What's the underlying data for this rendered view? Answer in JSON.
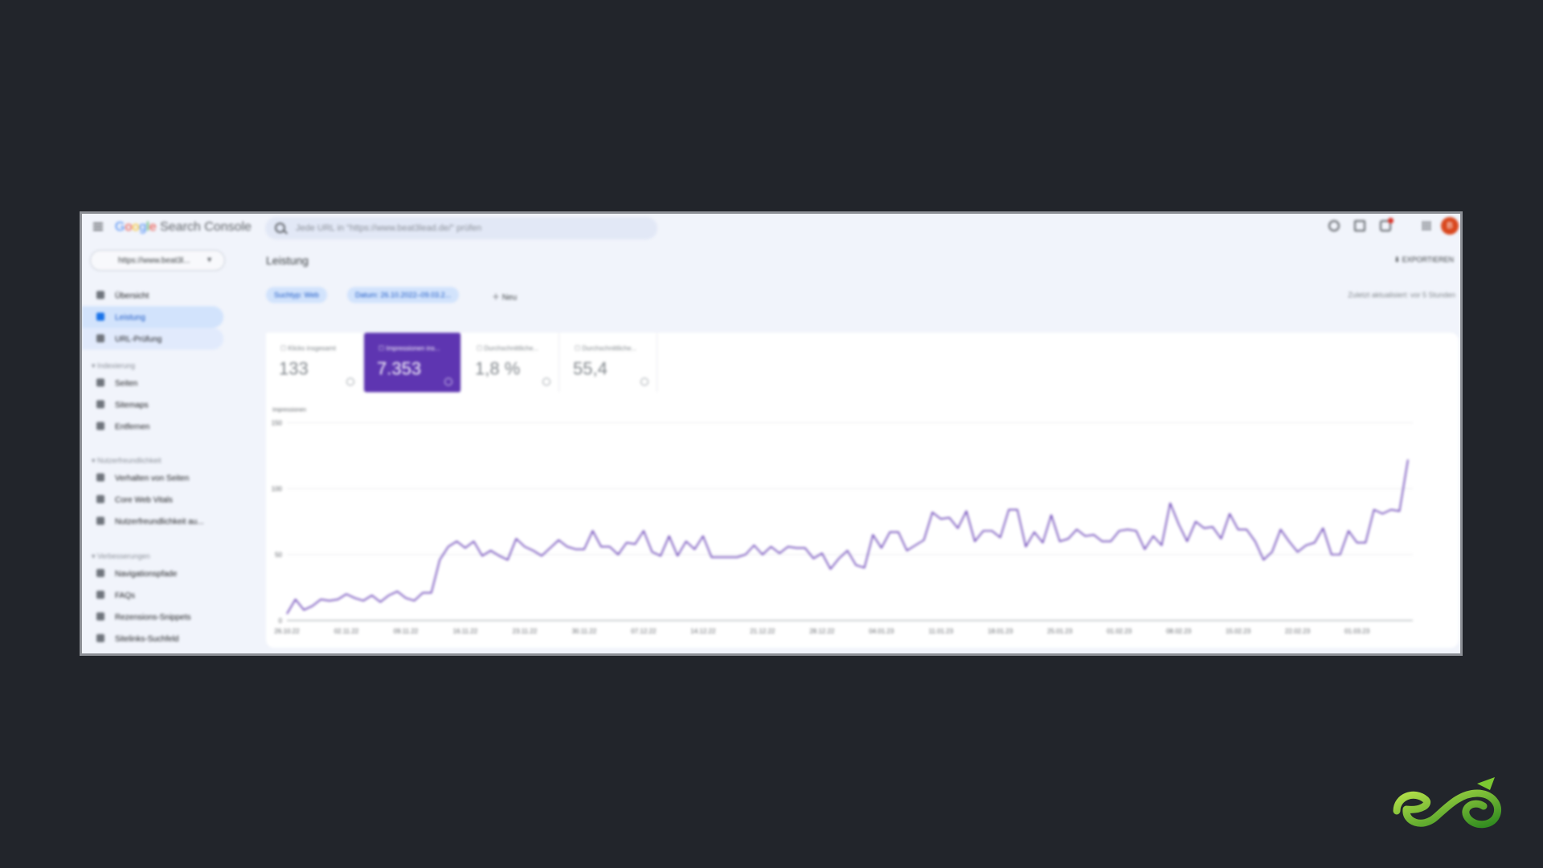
{
  "topbar": {
    "logo": {
      "g1": "G",
      "g2": "o",
      "g3": "o",
      "g4": "g",
      "g5": "l",
      "g6": "e",
      "product": "Search Console"
    },
    "search_placeholder": "Jede URL in \"https://www.beat3lead.de/\" prüfen",
    "avatar_initial": "B"
  },
  "sidebar": {
    "property": "https://www.beat3l...",
    "items": [
      {
        "label": "Übersicht",
        "icon": "home-icon"
      },
      {
        "label": "Leistung",
        "icon": "trending-icon",
        "active": true
      },
      {
        "label": "URL-Prüfung",
        "icon": "search-icon"
      }
    ],
    "sections": [
      {
        "title": "Indexierung",
        "items": [
          "Seiten",
          "Sitemaps",
          "Entfernen"
        ]
      },
      {
        "title": "Nutzerfreundlichkeit",
        "items": [
          "Verhalten von Seiten",
          "Core Web Vitals",
          "Nutzerfreundlichkeit au..."
        ]
      },
      {
        "title": "Verbesserungen",
        "items": [
          "Navigationspfade",
          "FAQs",
          "Rezensions-Snippets",
          "Sitelinks-Suchfeld"
        ]
      }
    ]
  },
  "main": {
    "title": "Leistung",
    "export": "EXPORTIEREN",
    "filters": [
      "Suchtyp: Web",
      "Datum: 26.10.2022–09.03.2..."
    ],
    "new_filter": "Neu",
    "updated": "Zuletzt aktualisiert: vor 5 Stunden",
    "metrics": [
      {
        "label": "Klicks insgesamt",
        "value": "133",
        "selected": false
      },
      {
        "label": "Impressionen ins...",
        "value": "7.353",
        "selected": true
      },
      {
        "label": "Durchschnittliche...",
        "value": "1,8 %",
        "selected": false
      },
      {
        "label": "Durchschnittliche...",
        "value": "55,4",
        "selected": false
      }
    ]
  },
  "colors": {
    "accent": "#5e35b1",
    "line": "#5e35b1",
    "active_nav": "#d2e3fc",
    "brand_green": "#5fb82d"
  },
  "chart_data": {
    "type": "line",
    "ylabel": "Impressionen",
    "ylim": [
      0,
      150
    ],
    "yticks": [
      0,
      50,
      100,
      150
    ],
    "x_labels": [
      "26.10.22",
      "02.11.22",
      "09.11.22",
      "16.11.22",
      "23.11.22",
      "30.11.22",
      "07.12.22",
      "14.12.22",
      "21.12.22",
      "28.12.22",
      "04.01.23",
      "11.01.23",
      "18.01.23",
      "25.01.23",
      "01.02.23",
      "08.02.23",
      "15.02.23",
      "22.02.23",
      "01.03.23"
    ],
    "series": [
      {
        "values": [
          5,
          16,
          8,
          11,
          16,
          15,
          16,
          20,
          17,
          15,
          19,
          14,
          19,
          22,
          17,
          15,
          21,
          21,
          46,
          56,
          60,
          55,
          60,
          49,
          53,
          49,
          46,
          62,
          56,
          53,
          49,
          55,
          61,
          56,
          54,
          54,
          68,
          56,
          56,
          50,
          59,
          58,
          68,
          52,
          49,
          64,
          49,
          60,
          54,
          64,
          48,
          48,
          48,
          48,
          50,
          57,
          50,
          56,
          51,
          56,
          55,
          55,
          47,
          51,
          39,
          47,
          53,
          42,
          40,
          65,
          55,
          67,
          67,
          53,
          57,
          61,
          82,
          77,
          78,
          70,
          83,
          60,
          68,
          68,
          63,
          84,
          84,
          56,
          67,
          59,
          80,
          60,
          62,
          69,
          64,
          65,
          60,
          60,
          68,
          69,
          68,
          54,
          64,
          57,
          89,
          73,
          60,
          75,
          70,
          71,
          62,
          81,
          69,
          69,
          60,
          46,
          52,
          69,
          60,
          52,
          57,
          59,
          70,
          50,
          50,
          68,
          59,
          59,
          84,
          81,
          84,
          83,
          122
        ]
      }
    ]
  }
}
